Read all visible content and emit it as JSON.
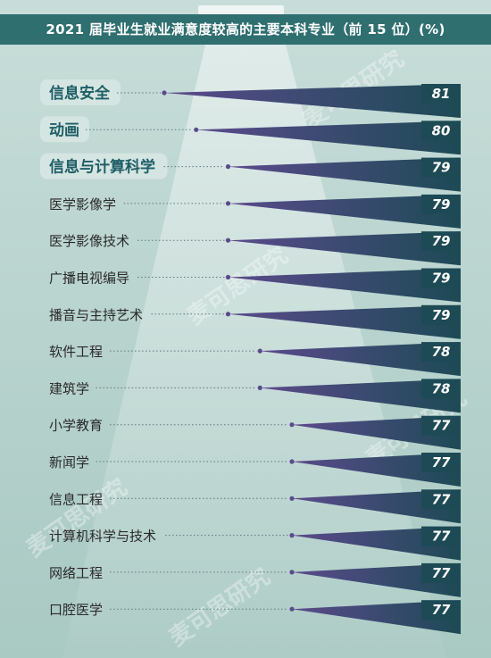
{
  "header": {
    "title": "2021 届毕业生就业满意度较高的主要本科专业（前 15 位）(%)"
  },
  "watermark": {
    "text": "麦可思研究"
  },
  "colors": {
    "background": "#b9d4cf",
    "title_band": "#2f6f70",
    "wedge_dark": "#1d4a55",
    "wedge_purple": "#5b4a8c",
    "highlight_pill": "#d5e5e2",
    "label_text": "#2a2a2a",
    "highlight_text": "#1f5e66"
  },
  "chart_data": {
    "type": "bar",
    "orientation": "horizontal",
    "title": "2021 届毕业生就业满意度较高的主要本科专业（前 15 位）(%)",
    "categories": [
      "信息安全",
      "动画",
      "信息与计算科学",
      "医学影像学",
      "医学影像技术",
      "广播电视编导",
      "播音与主持艺术",
      "软件工程",
      "建筑学",
      "小学教育",
      "新闻学",
      "信息工程",
      "计算机科学与技术",
      "网络工程",
      "口腔医学"
    ],
    "values": [
      81,
      80,
      79,
      79,
      79,
      79,
      79,
      78,
      78,
      77,
      77,
      77,
      77,
      77,
      77
    ],
    "highlighted": [
      "信息安全",
      "动画",
      "信息与计算科学"
    ],
    "xlabel": "",
    "ylabel": "",
    "grid": false
  }
}
